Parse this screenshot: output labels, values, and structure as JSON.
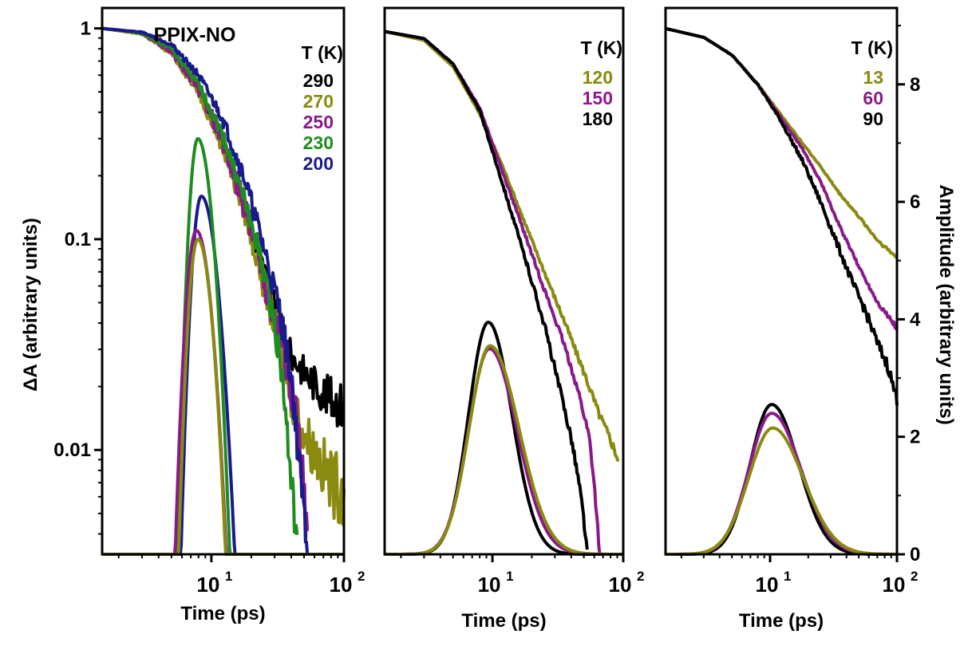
{
  "colors": {
    "black": "#000000",
    "olive": "#8a8a10",
    "purple": "#8a1a8a",
    "green": "#1e8c1e",
    "navy": "#1a1a8c"
  },
  "figure": {
    "left_ylabel": "ΔA (arbitrary units)",
    "right_ylabel": "Amplitude (arbitrary units)"
  },
  "chart_data": [
    {
      "type": "line",
      "title": "PPIX-NO",
      "xlabel": "Time (ps)",
      "xscale": "log",
      "xlim": [
        1.5,
        100
      ],
      "x_ticks": [
        {
          "value": 10,
          "base": "10",
          "exp": "1"
        },
        {
          "value": 100,
          "base": "10",
          "exp": "2"
        }
      ],
      "ylabel": "ΔA (arbitrary units)",
      "yscale": "log",
      "ylim": [
        0.0032,
        1.25
      ],
      "y_ticks": [
        {
          "value": 1,
          "label": "1"
        },
        {
          "value": 0.1,
          "label": "0.1"
        },
        {
          "value": 0.01,
          "label": "0.01"
        }
      ],
      "legend_title": "T (K)",
      "legend_position": "top-right",
      "legend": [
        {
          "label": "290",
          "color": "#000000"
        },
        {
          "label": "270",
          "color": "#8a8a10"
        },
        {
          "label": "250",
          "color": "#8a1a8a"
        },
        {
          "label": "230",
          "color": "#1e8c1e"
        },
        {
          "label": "200",
          "color": "#1a1a8c"
        }
      ],
      "series": [
        {
          "name": "290",
          "color": "#000000",
          "kind": "decay",
          "points": [
            [
              1.5,
              1
            ],
            [
              3,
              0.95
            ],
            [
              5,
              0.78
            ],
            [
              8,
              0.52
            ],
            [
              12,
              0.3
            ],
            [
              18,
              0.14
            ],
            [
              25,
              0.07
            ],
            [
              33,
              0.04
            ],
            [
              40,
              0.028
            ],
            [
              55,
              0.022
            ],
            [
              75,
              0.018
            ],
            [
              100,
              0.016
            ]
          ],
          "noise": 0.12
        },
        {
          "name": "270",
          "color": "#8a8a10",
          "kind": "decay",
          "points": [
            [
              1.5,
              1
            ],
            [
              3,
              0.94
            ],
            [
              5,
              0.76
            ],
            [
              8,
              0.5
            ],
            [
              12,
              0.28
            ],
            [
              18,
              0.13
            ],
            [
              25,
              0.06
            ],
            [
              33,
              0.032
            ],
            [
              40,
              0.018
            ],
            [
              50,
              0.012
            ],
            [
              65,
              0.009
            ],
            [
              80,
              0.007
            ],
            [
              100,
              0.0065
            ]
          ],
          "noise": 0.18
        },
        {
          "name": "250",
          "color": "#8a1a8a",
          "kind": "decay",
          "points": [
            [
              1.5,
              1
            ],
            [
              3,
              0.95
            ],
            [
              5,
              0.78
            ],
            [
              8,
              0.52
            ],
            [
              12,
              0.3
            ],
            [
              18,
              0.14
            ],
            [
              25,
              0.065
            ],
            [
              33,
              0.035
            ],
            [
              40,
              0.02
            ],
            [
              45,
              0.012
            ],
            [
              50,
              0.006
            ],
            [
              53,
              0.0035
            ]
          ],
          "noise": 0.15
        },
        {
          "name": "230",
          "color": "#1e8c1e",
          "kind": "decay",
          "points": [
            [
              1.5,
              1
            ],
            [
              3,
              0.95
            ],
            [
              5,
              0.8
            ],
            [
              8,
              0.54
            ],
            [
              12,
              0.32
            ],
            [
              18,
              0.15
            ],
            [
              25,
              0.07
            ],
            [
              30,
              0.04
            ],
            [
              35,
              0.02
            ],
            [
              38,
              0.01
            ],
            [
              42,
              0.005
            ],
            [
              45,
              0.0035
            ]
          ],
          "noise": 0.1
        },
        {
          "name": "200",
          "color": "#1a1a8c",
          "kind": "decay",
          "points": [
            [
              1.5,
              1
            ],
            [
              3,
              0.96
            ],
            [
              5,
              0.84
            ],
            [
              8,
              0.6
            ],
            [
              12,
              0.38
            ],
            [
              18,
              0.19
            ],
            [
              25,
              0.09
            ],
            [
              33,
              0.045
            ],
            [
              40,
              0.022
            ],
            [
              45,
              0.01
            ],
            [
              50,
              0.005
            ],
            [
              53,
              0.0035
            ]
          ],
          "noise": 0.1
        },
        {
          "name": "200 pulse",
          "color": "#1a1a8c",
          "kind": "pulse",
          "peak_t": 8.4,
          "peak": 0.16,
          "width_rise": 0.055,
          "width_fall": 0.09
        },
        {
          "name": "230 pulse",
          "color": "#1e8c1e",
          "kind": "pulse",
          "peak_t": 7.9,
          "peak": 0.3,
          "width_rise": 0.05,
          "width_fall": 0.08
        },
        {
          "name": "250 pulse",
          "color": "#8a1a8a",
          "kind": "pulse",
          "peak_t": 7.7,
          "peak": 0.11,
          "width_rise": 0.06,
          "width_fall": 0.085
        },
        {
          "name": "270 pulse",
          "color": "#8a8a10",
          "kind": "pulse",
          "peak_t": 7.9,
          "peak": 0.1,
          "width_rise": 0.055,
          "width_fall": 0.08
        }
      ]
    },
    {
      "type": "line",
      "xlabel": "Time (ps)",
      "xscale": "log",
      "xlim": [
        1.5,
        100
      ],
      "x_ticks": [
        {
          "value": 10,
          "base": "10",
          "exp": "1"
        },
        {
          "value": 100,
          "base": "10",
          "exp": "2"
        }
      ],
      "yscale": "linear",
      "ylim": [
        0,
        9.3
      ],
      "legend_title": "T (K)",
      "legend_position": "top-right",
      "legend": [
        {
          "label": "120",
          "color": "#8a8a10"
        },
        {
          "label": "150",
          "color": "#8a1a8a"
        },
        {
          "label": "180",
          "color": "#000000"
        }
      ],
      "series": [
        {
          "name": "120",
          "color": "#8a8a10",
          "kind": "lin",
          "points": [
            [
              1.5,
              8.9
            ],
            [
              3,
              8.75
            ],
            [
              5,
              8.3
            ],
            [
              8,
              7.5
            ],
            [
              12,
              6.6
            ],
            [
              18,
              5.6
            ],
            [
              25,
              4.8
            ],
            [
              35,
              4.0
            ],
            [
              50,
              3.1
            ],
            [
              65,
              2.4
            ],
            [
              80,
              1.95
            ],
            [
              92,
              1.6
            ]
          ],
          "noise": 0.06
        },
        {
          "name": "150",
          "color": "#8a1a8a",
          "kind": "lin",
          "points": [
            [
              1.5,
              8.9
            ],
            [
              3,
              8.78
            ],
            [
              5,
              8.35
            ],
            [
              8,
              7.6
            ],
            [
              12,
              6.5
            ],
            [
              18,
              5.4
            ],
            [
              25,
              4.5
            ],
            [
              35,
              3.6
            ],
            [
              45,
              2.8
            ],
            [
              55,
              2.0
            ],
            [
              60,
              1.2
            ],
            [
              64,
              0.4
            ],
            [
              66,
              0
            ]
          ],
          "noise": 0.05
        },
        {
          "name": "180",
          "color": "#000000",
          "kind": "lin",
          "points": [
            [
              1.5,
              8.9
            ],
            [
              3,
              8.78
            ],
            [
              5,
              8.35
            ],
            [
              8,
              7.55
            ],
            [
              12,
              6.3
            ],
            [
              18,
              5.0
            ],
            [
              25,
              3.9
            ],
            [
              32,
              2.9
            ],
            [
              40,
              2.0
            ],
            [
              46,
              1.2
            ],
            [
              50,
              0.6
            ],
            [
              53,
              0
            ]
          ],
          "noise": 0.07
        },
        {
          "name": "180 pulse",
          "color": "#000000",
          "kind": "pulse",
          "peak_t": 9.3,
          "peak": 3.95,
          "width_rise": 0.15,
          "width_fall": 0.18
        },
        {
          "name": "150 pulse",
          "color": "#8a1a8a",
          "kind": "pulse",
          "peak_t": 9.5,
          "peak": 3.5,
          "width_rise": 0.16,
          "width_fall": 0.21
        },
        {
          "name": "120 pulse",
          "color": "#8a8a10",
          "kind": "pulse",
          "peak_t": 9.6,
          "peak": 3.55,
          "width_rise": 0.16,
          "width_fall": 0.22
        }
      ]
    },
    {
      "type": "line",
      "xlabel": "Time (ps)",
      "xscale": "log",
      "xlim": [
        1.5,
        100
      ],
      "x_ticks": [
        {
          "value": 10,
          "base": "10",
          "exp": "1"
        },
        {
          "value": 100,
          "base": "10",
          "exp": "2"
        }
      ],
      "ylabel": "Amplitude (arbitrary units)",
      "yscale": "linear",
      "ylim": [
        0,
        9.3
      ],
      "y_ticks": [
        {
          "value": 0,
          "label": "0"
        },
        {
          "value": 2,
          "label": "2"
        },
        {
          "value": 4,
          "label": "4"
        },
        {
          "value": 6,
          "label": "6"
        },
        {
          "value": 8,
          "label": "8"
        }
      ],
      "legend_title": "T (K)",
      "legend_position": "top-right",
      "legend": [
        {
          "label": "13",
          "color": "#8a8a10"
        },
        {
          "label": "60",
          "color": "#8a1a8a"
        },
        {
          "label": "90",
          "color": "#000000"
        }
      ],
      "series": [
        {
          "name": "13",
          "color": "#8a8a10",
          "kind": "lin",
          "points": [
            [
              1.5,
              8.95
            ],
            [
              3,
              8.8
            ],
            [
              5,
              8.5
            ],
            [
              8,
              8.0
            ],
            [
              12,
              7.5
            ],
            [
              18,
              7.0
            ],
            [
              25,
              6.6
            ],
            [
              35,
              6.15
            ],
            [
              50,
              5.75
            ],
            [
              70,
              5.35
            ],
            [
              100,
              5.05
            ]
          ],
          "noise": 0.02
        },
        {
          "name": "60",
          "color": "#8a1a8a",
          "kind": "lin",
          "points": [
            [
              1.5,
              8.95
            ],
            [
              3,
              8.8
            ],
            [
              5,
              8.5
            ],
            [
              8,
              8.0
            ],
            [
              12,
              7.45
            ],
            [
              18,
              6.9
            ],
            [
              25,
              6.35
            ],
            [
              35,
              5.6
            ],
            [
              50,
              4.9
            ],
            [
              70,
              4.3
            ],
            [
              100,
              3.85
            ]
          ],
          "noise": 0.03
        },
        {
          "name": "90",
          "color": "#000000",
          "kind": "lin",
          "points": [
            [
              1.5,
              8.95
            ],
            [
              3,
              8.8
            ],
            [
              5,
              8.5
            ],
            [
              8,
              8.0
            ],
            [
              12,
              7.4
            ],
            [
              18,
              6.7
            ],
            [
              25,
              6.0
            ],
            [
              35,
              5.2
            ],
            [
              45,
              4.6
            ],
            [
              55,
              4.2
            ],
            [
              70,
              3.6
            ],
            [
              85,
              3.2
            ],
            [
              95,
              2.8
            ],
            [
              100,
              2.65
            ]
          ],
          "noise": 0.08
        },
        {
          "name": "90 pulse",
          "color": "#000000",
          "kind": "pulse",
          "peak_t": 10.3,
          "peak": 2.55,
          "width_rise": 0.17,
          "width_fall": 0.21
        },
        {
          "name": "60 pulse",
          "color": "#8a1a8a",
          "kind": "pulse",
          "peak_t": 10.3,
          "peak": 2.4,
          "width_rise": 0.18,
          "width_fall": 0.23
        },
        {
          "name": "13 pulse",
          "color": "#8a8a10",
          "kind": "pulse",
          "peak_t": 10.5,
          "peak": 2.15,
          "width_rise": 0.19,
          "width_fall": 0.24
        }
      ]
    }
  ]
}
